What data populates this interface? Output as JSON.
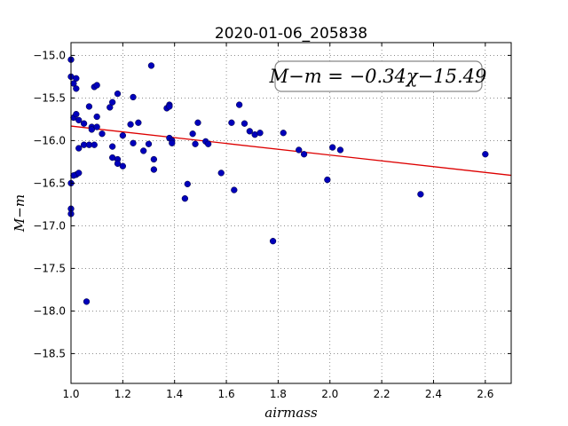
{
  "chart_data": {
    "type": "scatter",
    "title": "2020-01-06_205838",
    "xlabel": "airmass",
    "ylabel": "M−m",
    "xlim": [
      1.0,
      2.7
    ],
    "ylim": [
      -18.85,
      -14.85
    ],
    "x_ticks": [
      1.0,
      1.2,
      1.4,
      1.6,
      1.8,
      2.0,
      2.2,
      2.4,
      2.6
    ],
    "x_tick_labels": [
      "1.0",
      "1.2",
      "1.4",
      "1.6",
      "1.8",
      "2.0",
      "2.2",
      "2.4",
      "2.6"
    ],
    "y_ticks": [
      -15.0,
      -15.5,
      -16.0,
      -16.5,
      -17.0,
      -17.5,
      -18.0,
      -18.5
    ],
    "y_tick_labels": [
      "−15.0",
      "−15.5",
      "−16.0",
      "−16.5",
      "−17.0",
      "−17.5",
      "−18.0",
      "−18.5"
    ],
    "grid": true,
    "annotation": "M−m = −0.34χ−15.49",
    "fit_line": {
      "slope": -0.34,
      "intercept": -15.49,
      "color": "#dd0000"
    },
    "marker_color": "#0000bb",
    "points": [
      [
        1.0,
        -15.05
      ],
      [
        1.0,
        -15.25
      ],
      [
        1.01,
        -15.33
      ],
      [
        1.02,
        -15.39
      ],
      [
        1.02,
        -15.27
      ],
      [
        1.01,
        -15.73
      ],
      [
        1.02,
        -15.69
      ],
      [
        1.03,
        -15.76
      ],
      [
        1.05,
        -15.8
      ],
      [
        1.07,
        -15.6
      ],
      [
        1.09,
        -15.37
      ],
      [
        1.1,
        -15.35
      ],
      [
        1.08,
        -15.84
      ],
      [
        1.08,
        -15.87
      ],
      [
        1.1,
        -15.84
      ],
      [
        1.12,
        -15.92
      ],
      [
        1.1,
        -15.72
      ],
      [
        1.05,
        -16.05
      ],
      [
        1.07,
        -16.05
      ],
      [
        1.09,
        -16.05
      ],
      [
        1.03,
        -16.09
      ],
      [
        1.02,
        -16.4
      ],
      [
        1.03,
        -16.38
      ],
      [
        1.01,
        -16.41
      ],
      [
        1.0,
        -16.5
      ],
      [
        1.0,
        -16.8
      ],
      [
        1.0,
        -16.86
      ],
      [
        1.06,
        -17.89
      ],
      [
        1.15,
        -15.61
      ],
      [
        1.16,
        -15.55
      ],
      [
        1.18,
        -15.45
      ],
      [
        1.16,
        -16.07
      ],
      [
        1.16,
        -16.2
      ],
      [
        1.18,
        -16.22
      ],
      [
        1.18,
        -16.27
      ],
      [
        1.2,
        -16.3
      ],
      [
        1.2,
        -15.94
      ],
      [
        1.23,
        -15.81
      ],
      [
        1.24,
        -15.49
      ],
      [
        1.24,
        -16.03
      ],
      [
        1.26,
        -15.79
      ],
      [
        1.28,
        -16.12
      ],
      [
        1.3,
        -16.04
      ],
      [
        1.31,
        -15.12
      ],
      [
        1.32,
        -16.22
      ],
      [
        1.32,
        -16.34
      ],
      [
        1.37,
        -15.62
      ],
      [
        1.38,
        -15.58
      ],
      [
        1.38,
        -15.6
      ],
      [
        1.38,
        -15.97
      ],
      [
        1.39,
        -16.0
      ],
      [
        1.39,
        -16.03
      ],
      [
        1.44,
        -16.68
      ],
      [
        1.45,
        -16.51
      ],
      [
        1.47,
        -15.92
      ],
      [
        1.48,
        -16.04
      ],
      [
        1.49,
        -15.79
      ],
      [
        1.52,
        -16.01
      ],
      [
        1.53,
        -16.04
      ],
      [
        1.58,
        -16.38
      ],
      [
        1.62,
        -15.79
      ],
      [
        1.63,
        -16.58
      ],
      [
        1.65,
        -15.58
      ],
      [
        1.67,
        -15.8
      ],
      [
        1.69,
        -15.89
      ],
      [
        1.71,
        -15.93
      ],
      [
        1.73,
        -15.91
      ],
      [
        1.78,
        -17.18
      ],
      [
        1.82,
        -15.91
      ],
      [
        1.88,
        -16.11
      ],
      [
        1.9,
        -16.16
      ],
      [
        1.99,
        -16.46
      ],
      [
        2.01,
        -16.08
      ],
      [
        2.04,
        -16.11
      ],
      [
        2.35,
        -16.63
      ],
      [
        2.6,
        -16.16
      ]
    ]
  }
}
